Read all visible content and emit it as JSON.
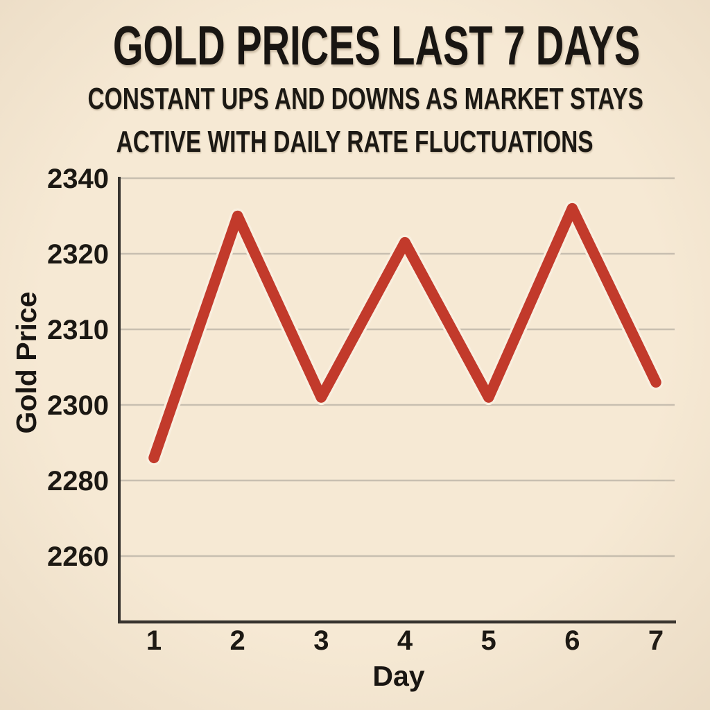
{
  "header": {
    "title": "GOLD PRICES LAST 7 DAYS",
    "subtitle_line1": "CONSTANT UPS AND DOWNS AS MARKET STAYS",
    "subtitle_line2": "ACTIVE WITH DAILY RATE FLUCTUATIONS"
  },
  "chart_data": {
    "type": "line",
    "title": "GOLD PRICES LAST 7 DAYS",
    "subtitle": "CONSTANT UPS AND DOWNS AS MARKET STAYS ACTIVE WITH DAILY RATE FLUCTUATIONS",
    "xlabel": "Day",
    "ylabel": "Gold Price",
    "x": [
      1,
      2,
      3,
      4,
      5,
      6,
      7
    ],
    "x_tick_labels": [
      "1",
      "2",
      "3",
      "4",
      "5",
      "6",
      "7"
    ],
    "values": [
      2286,
      2330,
      2301,
      2323,
      2301,
      2332,
      2303
    ],
    "y_tick_labels": [
      "2340",
      "2320",
      "2310",
      "2300",
      "2280",
      "2260"
    ],
    "y_tick_values": [
      2340,
      2320,
      2310,
      2300,
      2280,
      2260
    ],
    "grid": true,
    "legend": false
  },
  "colors": {
    "background": "#f6e9d4",
    "line": "#c23a2b",
    "line_halo": "#f9efdf",
    "grid": "#c8bfb0",
    "axis": "#36332f",
    "text": "#1b1813"
  }
}
